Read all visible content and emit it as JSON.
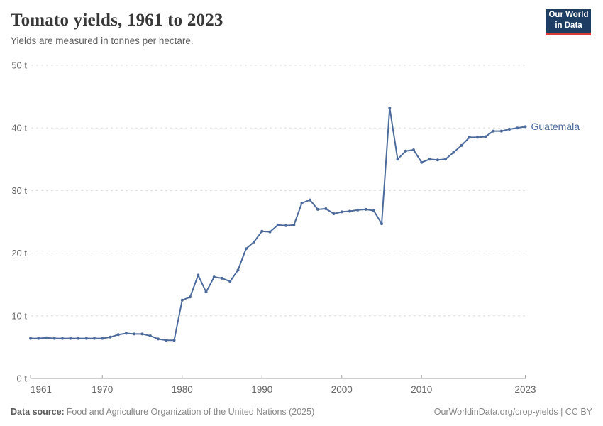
{
  "header": {
    "title": "Tomato yields, 1961 to 2023",
    "subtitle": "Yields are measured in tonnes per hectare.",
    "logo": {
      "line1": "Our World",
      "line2": "in Data"
    }
  },
  "footer": {
    "source_label": "Data source:",
    "source_text": "Food and Agriculture Organization of the United Nations (2025)",
    "link_text": "OurWorldinData.org/crop-yields | CC BY"
  },
  "colors": {
    "line": "#4C6A9C",
    "series_label": "#4C6A9C",
    "grid": "#DDDDDD",
    "axis": "#A3A3A3",
    "tick_text": "#666666",
    "logo_bg": "#1D3D63",
    "logo_red": "#D93A34"
  },
  "chart_data": {
    "type": "line",
    "title": "Tomato yields, 1961 to 2023",
    "subtitle": "Yields are measured in tonnes per hectare.",
    "ylabel": "tonnes per hectare",
    "series_name": "Guatemala",
    "xlim": [
      1961,
      2023
    ],
    "ylim": [
      0,
      50
    ],
    "grid": true,
    "legend_position": "end-of-line",
    "x": [
      1961,
      1962,
      1963,
      1964,
      1965,
      1966,
      1967,
      1968,
      1969,
      1970,
      1971,
      1972,
      1973,
      1974,
      1975,
      1976,
      1977,
      1978,
      1979,
      1980,
      1981,
      1982,
      1983,
      1984,
      1985,
      1986,
      1987,
      1988,
      1989,
      1990,
      1991,
      1992,
      1993,
      1994,
      1995,
      1996,
      1997,
      1998,
      1999,
      2000,
      2001,
      2002,
      2003,
      2004,
      2005,
      2006,
      2007,
      2008,
      2009,
      2010,
      2011,
      2012,
      2013,
      2014,
      2015,
      2016,
      2017,
      2018,
      2019,
      2020,
      2021,
      2022,
      2023
    ],
    "values": [
      6.4,
      6.4,
      6.5,
      6.4,
      6.4,
      6.4,
      6.4,
      6.4,
      6.4,
      6.4,
      6.6,
      7.0,
      7.2,
      7.1,
      7.1,
      6.8,
      6.3,
      6.1,
      6.1,
      12.5,
      13.0,
      16.5,
      13.8,
      16.2,
      16.0,
      15.5,
      17.3,
      20.7,
      21.8,
      23.5,
      23.4,
      24.5,
      24.4,
      24.5,
      28.0,
      28.5,
      27.0,
      27.1,
      26.3,
      26.6,
      26.7,
      26.9,
      27.0,
      26.8,
      24.7,
      43.2,
      35.0,
      36.3,
      36.5,
      34.5,
      35.0,
      34.9,
      35.0,
      36.1,
      37.2,
      38.5,
      38.5,
      38.6,
      39.5,
      39.5,
      39.8,
      40.0,
      40.2
    ],
    "y_ticks": [
      {
        "value": 0,
        "label": "0 t"
      },
      {
        "value": 10,
        "label": "10 t"
      },
      {
        "value": 20,
        "label": "20 t"
      },
      {
        "value": 30,
        "label": "30 t"
      },
      {
        "value": 40,
        "label": "40 t"
      },
      {
        "value": 50,
        "label": "50 t"
      }
    ],
    "x_ticks": [
      {
        "value": 1961,
        "label": "1961"
      },
      {
        "value": 1970,
        "label": "1970"
      },
      {
        "value": 1980,
        "label": "1980"
      },
      {
        "value": 1990,
        "label": "1990"
      },
      {
        "value": 2000,
        "label": "2000"
      },
      {
        "value": 2010,
        "label": "2010"
      },
      {
        "value": 2023,
        "label": "2023"
      }
    ]
  }
}
